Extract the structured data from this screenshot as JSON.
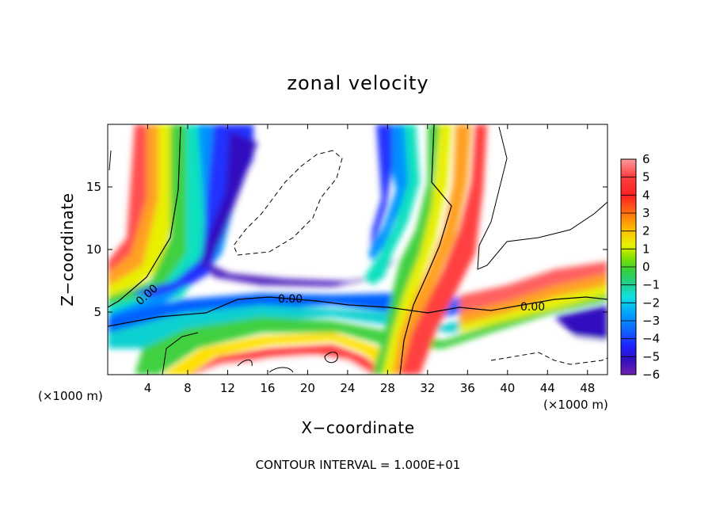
{
  "chart_data": {
    "type": "heatmap",
    "title": "zonal velocity",
    "xlabel": "X−coordinate",
    "ylabel": "Z−coordinate",
    "x_units_left": "(×1000 m)",
    "x_units_right": "(×1000 m)",
    "xlim": [
      0,
      50
    ],
    "ylim": [
      0,
      20
    ],
    "x_ticks": [
      4,
      8,
      12,
      16,
      20,
      24,
      28,
      32,
      36,
      40,
      44,
      48
    ],
    "y_ticks": [
      5,
      10,
      15
    ],
    "colorbar": {
      "labels": [
        "6",
        "5",
        "4",
        "3",
        "2",
        "1",
        "0",
        "−1",
        "−2",
        "−3",
        "−4",
        "−5",
        "−6"
      ],
      "range": [
        -6,
        6
      ],
      "colors": [
        "#ff9090",
        "#ff6060",
        "#ff2a2a",
        "#ff6a10",
        "#ffa020",
        "#ffe000",
        "#b8f000",
        "#40e040",
        "#20c060",
        "#10e0c0",
        "#00c8ff",
        "#0090ff",
        "#2050ff",
        "#2020ff",
        "#3010c0",
        "#7020c0"
      ]
    },
    "contour_labels": [
      "0.00",
      "0.00",
      "0.00"
    ],
    "footer": "CONTOUR INTERVAL = 1.000E+01"
  }
}
